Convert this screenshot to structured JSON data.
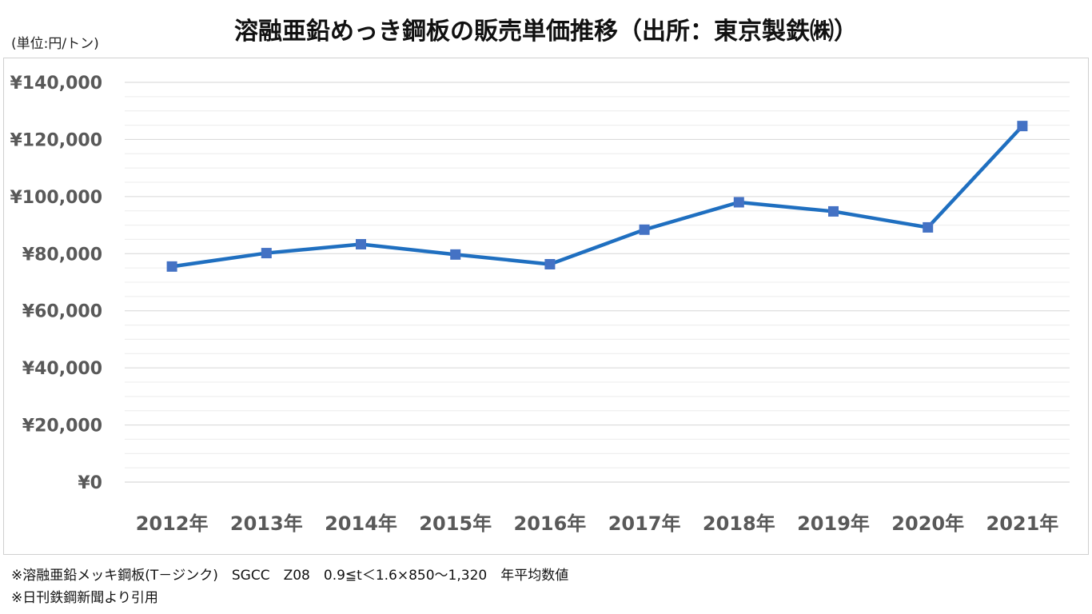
{
  "chart_data": {
    "type": "line",
    "title": "溶融亜鉛めっき鋼板の販売単価推移（出所：東京製鉄㈱）",
    "unit_label": "(単位:円/トン)",
    "categories": [
      "2012年",
      "2013年",
      "2014年",
      "2015年",
      "2016年",
      "2017年",
      "2018年",
      "2019年",
      "2020年",
      "2021年"
    ],
    "series": [
      {
        "values": [
          75500,
          80200,
          83300,
          79700,
          76300,
          88400,
          98000,
          94800,
          89200,
          124700
        ]
      }
    ],
    "ylim": [
      0,
      140000
    ],
    "y_ticks": [
      0,
      20000,
      40000,
      60000,
      80000,
      100000,
      120000,
      140000
    ],
    "y_tick_labels": [
      "¥0",
      "¥20,000",
      "¥40,000",
      "¥60,000",
      "¥80,000",
      "¥100,000",
      "¥120,000",
      "¥140,000"
    ],
    "grid": true,
    "line_color": "#1f6fc0",
    "marker_color": "#4472c4"
  },
  "notes": [
    "※溶融亜鉛メッキ鋼板(T－ジンク)　SGCC　Z08　0.9≦t＜1.6×850～1,320　年平均数値",
    "※日刊鉄鋼新聞より引用"
  ]
}
